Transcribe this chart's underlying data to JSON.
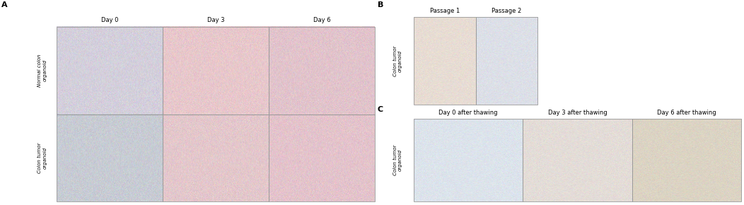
{
  "figure_width": 10.52,
  "figure_height": 2.9,
  "dpi": 100,
  "bg_color": "#ffffff",
  "panel_A_label": "A",
  "panel_B_label": "B",
  "panel_C_label": "C",
  "panel_A_col_labels": [
    "Day 0",
    "Day 3",
    "Day 6"
  ],
  "panel_A_row_labels": [
    "Normal colon\norganoid",
    "Colon tumor\norganoid"
  ],
  "panel_A_colors": [
    [
      "#d4d0dc",
      "#e8c8cc",
      "#e2c4cc"
    ],
    [
      "#c8ccd4",
      "#e4c8cc",
      "#e4c4cc"
    ]
  ],
  "panel_B_col_labels": [
    "Passage 1",
    "Passage 2"
  ],
  "panel_B_row_label": "Colon tumor\norganoid",
  "panel_B_colors": [
    "#e8ddd4",
    "#dde0e8"
  ],
  "panel_C_col_labels": [
    "Day 0 after thawing",
    "Day 3 after thawing",
    "Day 6 after thawing"
  ],
  "panel_C_row_label": "Colon tumor\norganoid",
  "panel_C_colors": [
    "#dde4ec",
    "#e4ddd8",
    "#dcd4c4"
  ],
  "panel_label_fontsize": 8,
  "row_label_fontsize": 5.0,
  "col_label_fontsize": 6.0,
  "border_color": "#999999",
  "border_lw": 0.6
}
